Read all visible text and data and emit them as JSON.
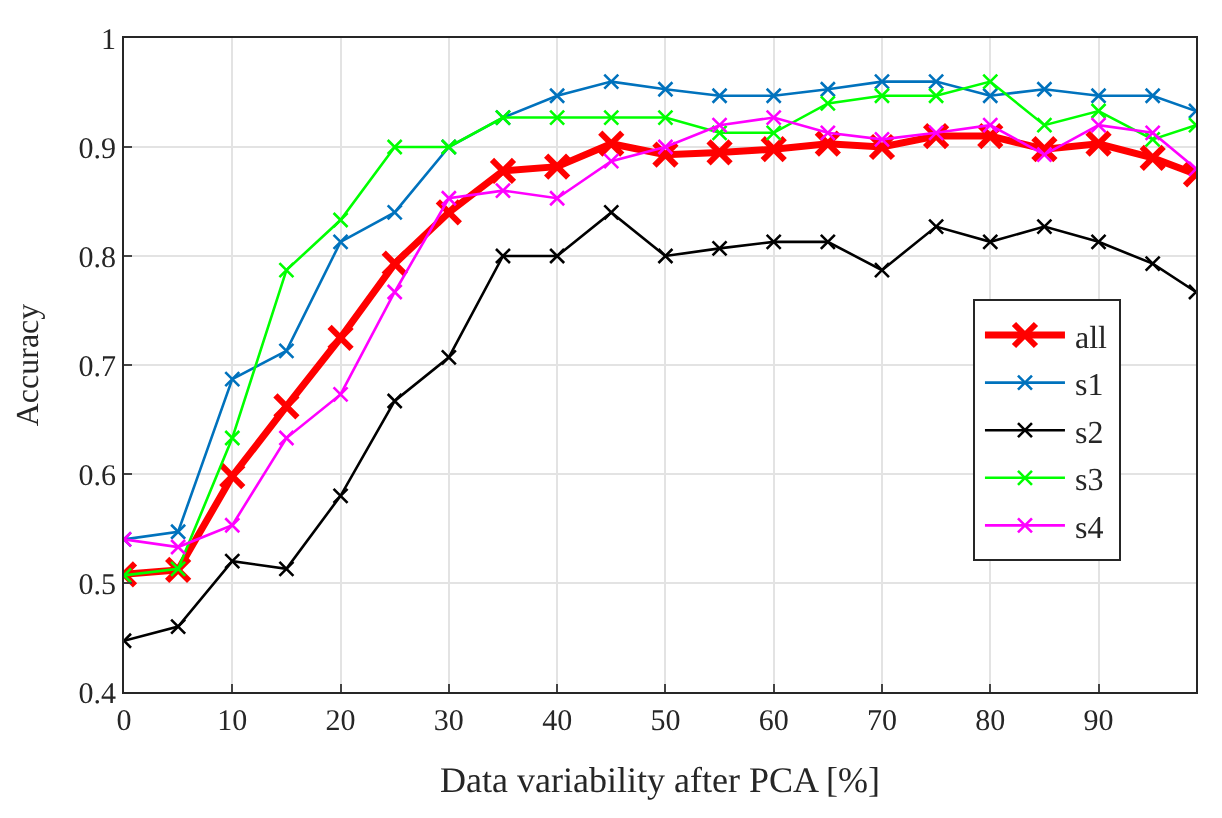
{
  "chart_data": {
    "type": "line",
    "xlabel": "Data variability after PCA [%]",
    "ylabel": "Accuracy",
    "x": [
      0,
      5,
      10,
      15,
      20,
      25,
      30,
      35,
      40,
      45,
      50,
      55,
      60,
      65,
      70,
      75,
      80,
      85,
      90,
      95,
      99
    ],
    "xlim": [
      0,
      99
    ],
    "xticks": [
      0,
      10,
      20,
      30,
      40,
      50,
      60,
      70,
      80,
      90
    ],
    "ylim": [
      0.4,
      1
    ],
    "yticks": [
      {
        "value": 0.4,
        "label": "0.4"
      },
      {
        "value": 0.5,
        "label": "0.5"
      },
      {
        "value": 0.6,
        "label": "0.6"
      },
      {
        "value": 0.7,
        "label": "0.7"
      },
      {
        "value": 0.8,
        "label": "0.8"
      },
      {
        "value": 0.9,
        "label": "0.9"
      },
      {
        "value": 1,
        "label": "1"
      }
    ],
    "grid": true,
    "legend": "bottom right",
    "marker": "cross",
    "line_style": "solid",
    "series": [
      {
        "name": "all",
        "color": "#ff0000",
        "values": [
          0.508,
          0.512,
          0.598,
          0.662,
          0.725,
          0.793,
          0.84,
          0.878,
          0.882,
          0.903,
          0.893,
          0.895,
          0.898,
          0.903,
          0.9,
          0.91,
          0.91,
          0.898,
          0.903,
          0.89,
          0.875
        ]
      },
      {
        "name": "s1",
        "color": "#0072bd",
        "values": [
          0.54,
          0.547,
          0.687,
          0.713,
          0.813,
          0.84,
          0.9,
          0.927,
          0.947,
          0.96,
          0.953,
          0.947,
          0.947,
          0.953,
          0.96,
          0.96,
          0.947,
          0.953,
          0.947,
          0.947,
          0.933
        ]
      },
      {
        "name": "s2",
        "color": "#000000",
        "values": [
          0.447,
          0.46,
          0.52,
          0.513,
          0.58,
          0.667,
          0.707,
          0.8,
          0.8,
          0.84,
          0.8,
          0.807,
          0.813,
          0.813,
          0.787,
          0.827,
          0.813,
          0.827,
          0.813,
          0.793,
          0.767
        ]
      },
      {
        "name": "s3",
        "color": "#00ff00",
        "values": [
          0.507,
          0.513,
          0.633,
          0.787,
          0.833,
          0.9,
          0.9,
          0.927,
          0.927,
          0.927,
          0.927,
          0.913,
          0.913,
          0.94,
          0.947,
          0.947,
          0.96,
          0.92,
          0.933,
          0.907,
          0.92
        ]
      },
      {
        "name": "s4",
        "color": "#ff00ff",
        "values": [
          0.54,
          0.533,
          0.553,
          0.633,
          0.673,
          0.767,
          0.853,
          0.86,
          0.853,
          0.887,
          0.9,
          0.92,
          0.927,
          0.913,
          0.907,
          0.913,
          0.92,
          0.893,
          0.92,
          0.913,
          0.88
        ]
      }
    ]
  }
}
